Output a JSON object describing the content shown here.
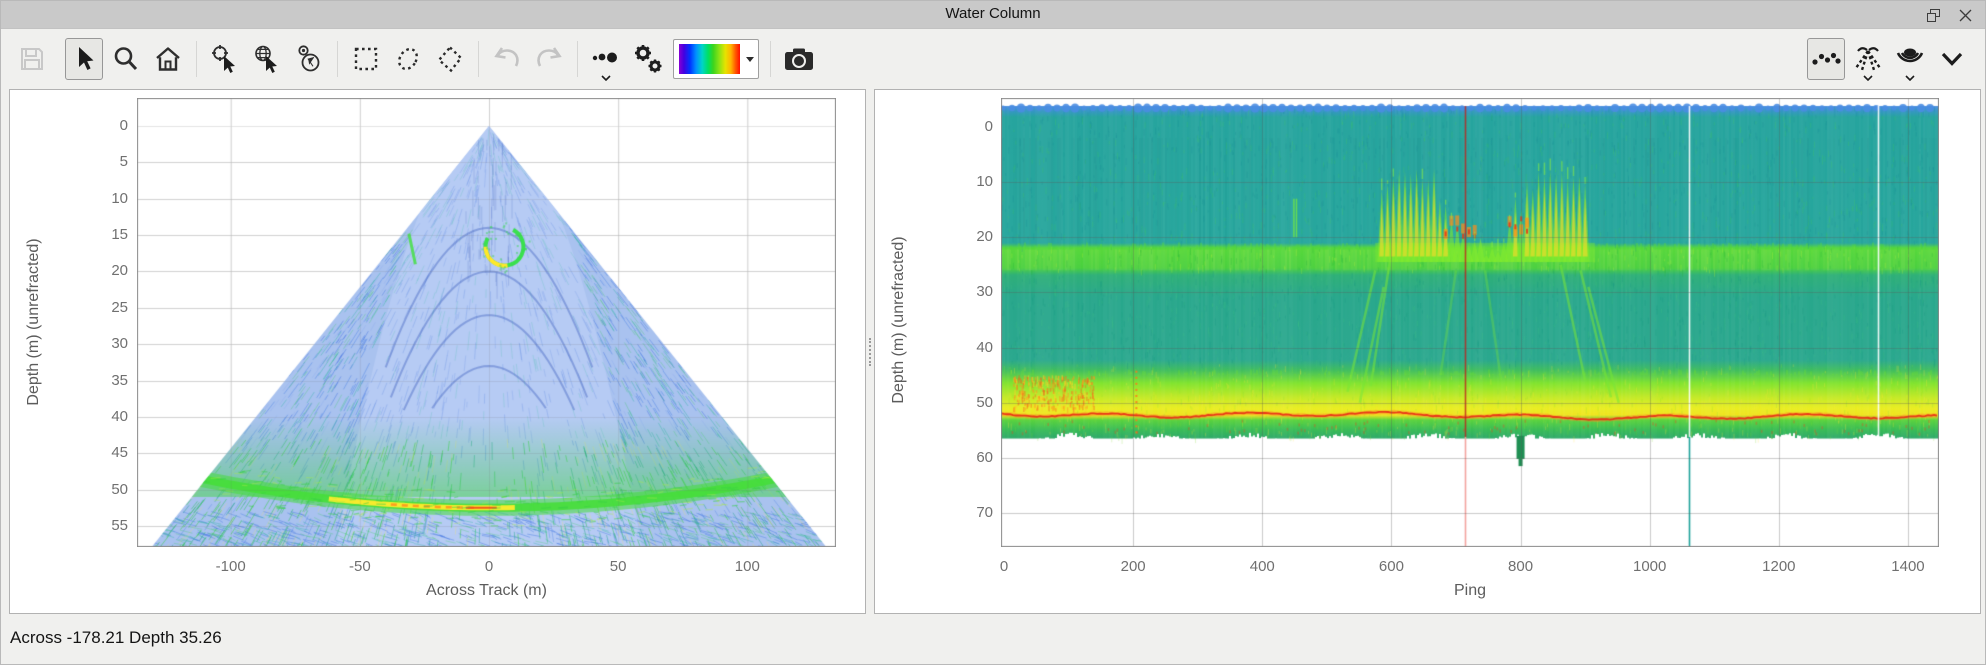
{
  "window": {
    "title": "Water Column",
    "controls": {
      "float_icon": "float-window",
      "close_icon": "close"
    }
  },
  "toolbar": {
    "icons": [
      {
        "name": "save",
        "enabled": false
      },
      {
        "name": "select-cursor",
        "enabled": true,
        "active": true
      },
      {
        "name": "zoom-magnifier",
        "enabled": true
      },
      {
        "name": "home-view",
        "enabled": true
      },
      {
        "name": "zoom-to-point",
        "enabled": true
      },
      {
        "name": "geo-pick",
        "enabled": true
      },
      {
        "name": "compass-orientation",
        "enabled": true
      },
      {
        "name": "rectangle-select",
        "enabled": true
      },
      {
        "name": "ellipse-select",
        "enabled": true
      },
      {
        "name": "polygon-select",
        "enabled": true
      },
      {
        "name": "undo",
        "enabled": false
      },
      {
        "name": "redo",
        "enabled": false
      },
      {
        "name": "point-size-menu",
        "enabled": true,
        "has_menu": true
      },
      {
        "name": "settings-gears",
        "enabled": true
      },
      {
        "name": "colormap-picker",
        "enabled": true,
        "type": "rainbow-gradient"
      },
      {
        "name": "snapshot-camera",
        "enabled": true
      }
    ],
    "view_icons": [
      {
        "name": "points-view",
        "active": true
      },
      {
        "name": "beams-view",
        "has_menu": true
      },
      {
        "name": "watercolumn-view",
        "has_menu": true
      },
      {
        "name": "collapse-chevron"
      }
    ]
  },
  "status_bar": {
    "text": "Across -178.21  Depth 35.26"
  },
  "chart_data": [
    {
      "id": "fan",
      "type": "heatmap",
      "title": "",
      "xlabel": "Across Track (m)",
      "ylabel": "Depth (m) (unrefracted)",
      "xlim": [
        -136,
        135
      ],
      "depth_range": [
        -3.9,
        57.9
      ],
      "xticks": [
        -100,
        -50,
        0,
        50,
        100
      ],
      "yticks": [
        0,
        5,
        10,
        15,
        20,
        25,
        30,
        35,
        40,
        45,
        50,
        55
      ],
      "grid": true,
      "beam_half_angle_deg": 38.7,
      "apex": {
        "across_m": 0,
        "depth_m": 0
      },
      "features": {
        "fan_fill": "#a9c2ef",
        "inner_refraction_fill": "#b6cbf4",
        "seafloor_depth_center_m": 52.5,
        "seafloor_band_colors": [
          "#46dc3c",
          "#ffe92c",
          "#ff8d1c"
        ],
        "ring_target": {
          "across_m": 6,
          "depth_m": 16.6,
          "radius_m": 2.6,
          "colors": [
            "#3ae04e",
            "#ffe82a"
          ]
        },
        "side_echo": {
          "across_m": -30,
          "depth_m": 17
        }
      }
    },
    {
      "id": "echogram",
      "type": "heatmap",
      "title": "",
      "xlabel": "Ping",
      "ylabel": "Depth (m) (unrefracted)",
      "xlim": [
        0,
        1448
      ],
      "depth_range": [
        -5.3,
        76.2
      ],
      "xticks": [
        0,
        200,
        400,
        600,
        800,
        1000,
        1200,
        1400
      ],
      "yticks": [
        0,
        10,
        20,
        30,
        40,
        50,
        60,
        70
      ],
      "grid": true,
      "features": {
        "surface_color": "#4a8de2",
        "upper_layer_color": "#25a49e",
        "scatter_band": {
          "top_m": 22,
          "bottom_m": 26,
          "color": "#55d83a"
        },
        "seafloor_line": {
          "depth_m": 52.2,
          "color": "#e8321e"
        },
        "data_bottom_m": 56.5,
        "near_hotspot": {
          "ping_range": [
            15,
            140
          ],
          "depth_range": [
            45,
            51
          ],
          "color": "#ff9422"
        },
        "dotted_streak_ping": 205,
        "midwater_school": {
          "ping_range": [
            575,
            915
          ],
          "depth_range": [
            8,
            25
          ]
        },
        "bottom_dip": {
          "ping": 800,
          "depth_range": [
            56.5,
            61.5
          ]
        },
        "marker_lines": [
          {
            "ping": 714,
            "color": "rgba(190,35,28,0.8)",
            "below_color": "rgba(242,160,155,0.95)"
          },
          {
            "ping": 1061,
            "color": "rgba(255,255,255,0.9)",
            "below_color": "rgba(20,158,150,0.95)"
          },
          {
            "ping": 1354,
            "color": "rgba(255,255,255,0.9)",
            "below_color": ""
          }
        ]
      }
    }
  ]
}
